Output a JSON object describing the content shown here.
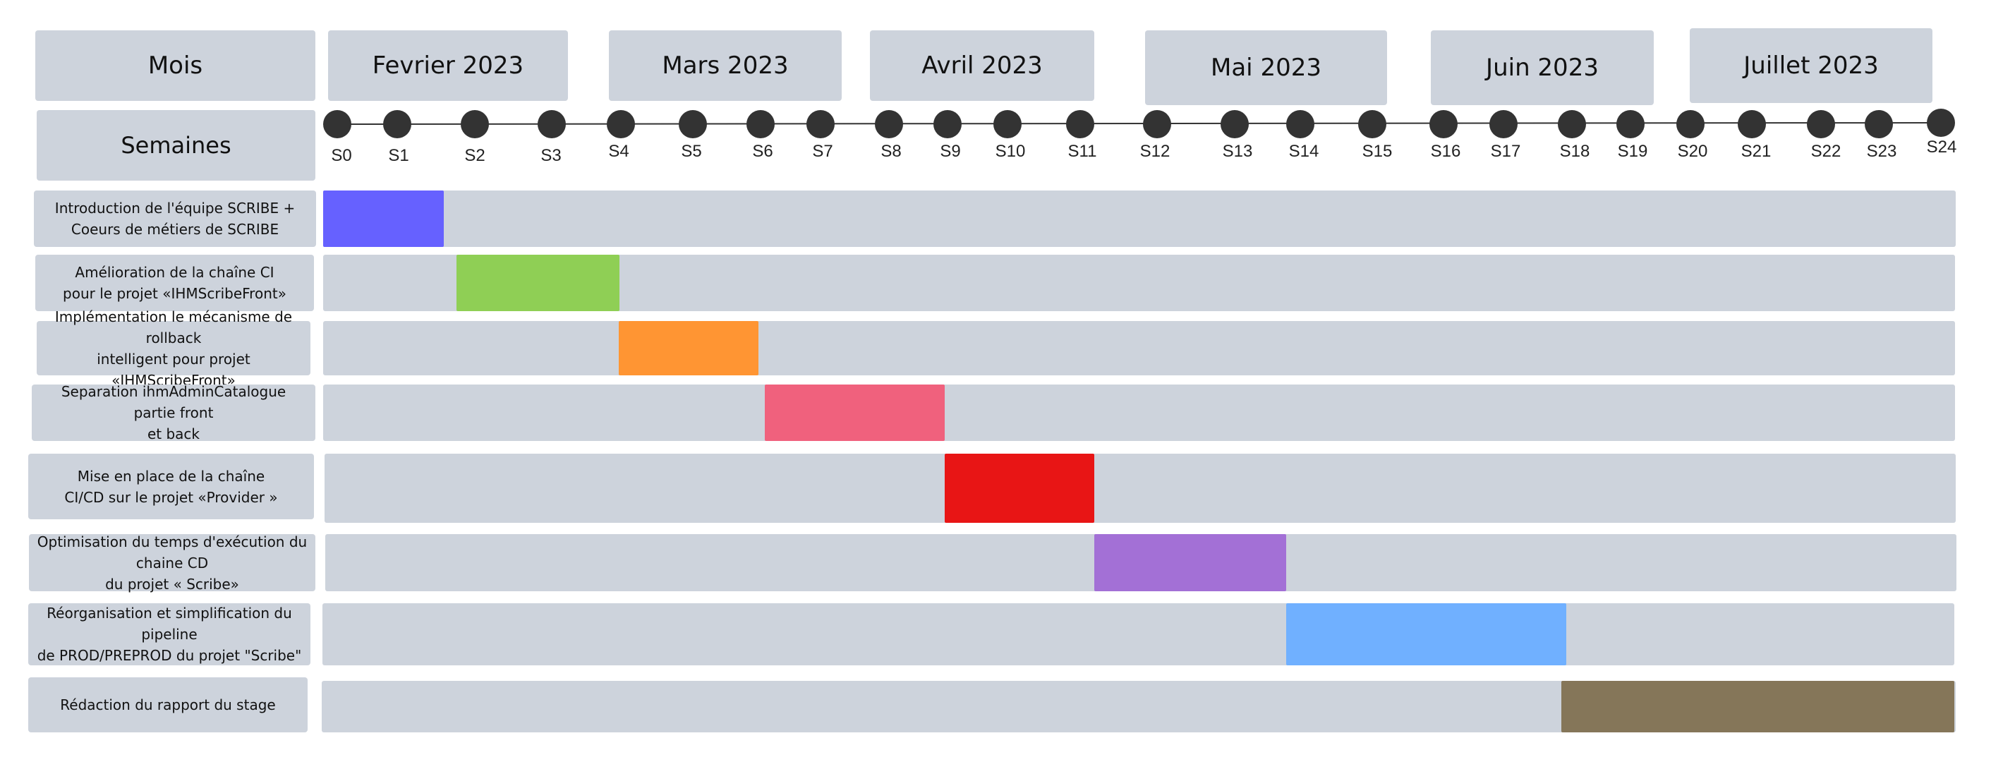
{
  "header": {
    "mois_label": "Mois",
    "semaines_label": "Semaines",
    "months": [
      "Fevrier 2023",
      "Mars 2023",
      "Avril 2023",
      "Mai 2023",
      "Juin 2023",
      "Juillet 2023"
    ]
  },
  "weeks": [
    "S0",
    "S1",
    "S2",
    "S3",
    "S4",
    "S5",
    "S6",
    "S7",
    "S8",
    "S9",
    "S10",
    "S11",
    "S12",
    "S13",
    "S14",
    "S15",
    "S16",
    "S17",
    "S18",
    "S19",
    "S20",
    "S21",
    "S22",
    "S23",
    "S24"
  ],
  "tasks": [
    {
      "line1": "Introduction de l'équipe SCRIBE +",
      "line2": "Coeurs de métiers de SCRIBE",
      "color": "#6661ff"
    },
    {
      "line1": "Amélioration de la chaîne CI",
      "line2": "pour le projet «IHMScribeFront»",
      "color": "#8fcf55"
    },
    {
      "line1": "Implémentation le mécanisme de rollback",
      "line2": "intelligent pour projet «IHMScribeFront»",
      "color": "#ff9533"
    },
    {
      "line1": "Separation ihmAdminCatalogue partie front",
      "line2": "et back",
      "color": "#f0617d"
    },
    {
      "line1": "Mise en place de la chaîne",
      "line2": "CI/CD sur le projet «Provider »",
      "color": "#e81515"
    },
    {
      "line1": "Optimisation du temps d'exécution du chaine CD",
      "line2": "du projet « Scribe»",
      "color": "#a370d6"
    },
    {
      "line1": "Réorganisation et simplification du pipeline",
      "line2": "de PROD/PREPROD du projet \"Scribe\"",
      "color": "#70b0ff"
    },
    {
      "line1": "Rédaction du rapport du stage",
      "line2": "",
      "color": "#857659"
    }
  ],
  "colors": {
    "box": "#cdd3dc",
    "dot": "#333333"
  }
}
